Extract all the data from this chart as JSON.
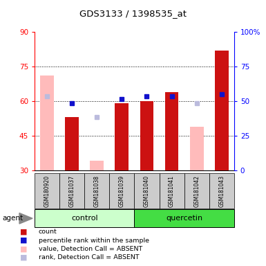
{
  "title": "GDS3133 / 1398535_at",
  "samples": [
    "GSM180920",
    "GSM181037",
    "GSM181038",
    "GSM181039",
    "GSM181040",
    "GSM181041",
    "GSM181042",
    "GSM181043"
  ],
  "count_values": [
    null,
    53,
    null,
    59,
    60,
    64,
    null,
    82
  ],
  "absent_value_values": [
    71,
    null,
    34,
    null,
    null,
    null,
    49,
    null
  ],
  "percentile_rank": [
    null,
    59,
    null,
    61,
    62,
    62,
    null,
    63
  ],
  "absent_rank_values": [
    62,
    null,
    53,
    null,
    null,
    null,
    59,
    null
  ],
  "ylim_left": [
    30,
    90
  ],
  "ylim_right": [
    0,
    100
  ],
  "yticks_left": [
    30,
    45,
    60,
    75,
    90
  ],
  "yticks_right": [
    0,
    25,
    50,
    75,
    100
  ],
  "color_count": "#cc1111",
  "color_percentile": "#1111cc",
  "color_absent_value": "#ffbbbb",
  "color_absent_rank": "#bbbbdd",
  "color_control_bg": "#ccffcc",
  "color_quercetin_bg": "#44dd44",
  "color_sample_bg": "#cccccc",
  "bar_width": 0.55
}
